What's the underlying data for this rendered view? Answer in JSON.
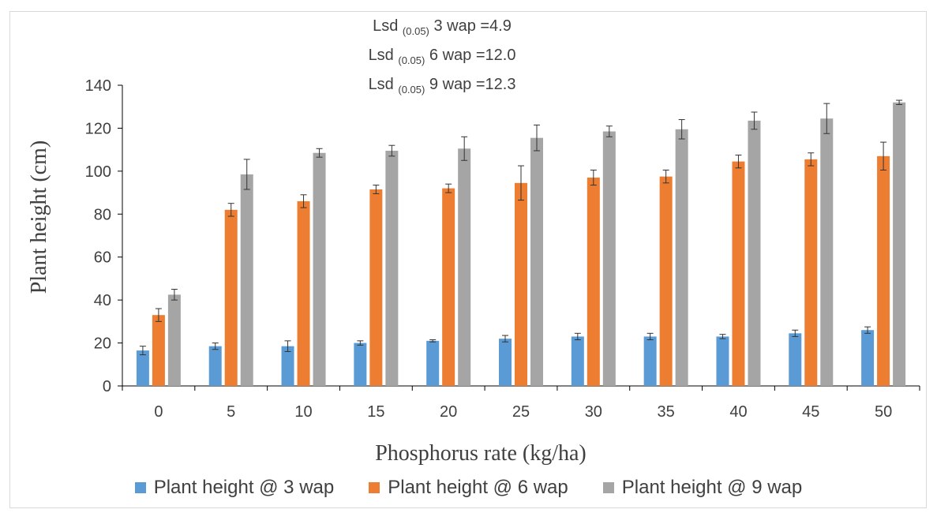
{
  "annotations": [
    {
      "prefix": "Lsd",
      "sub": "(0.05)",
      "suffix": "3 wap =4.9"
    },
    {
      "prefix": "Lsd",
      "sub": "(0.05)",
      "suffix": "6 wap =12.0"
    },
    {
      "prefix": "Lsd",
      "sub": "(0.05)",
      "suffix": "9 wap =12.3"
    }
  ],
  "chart_data": {
    "type": "bar",
    "title": "",
    "xlabel": "Phosphorus rate (kg/ha)",
    "ylabel": "Plant height (cm)",
    "ylim": [
      0,
      140
    ],
    "yticks": [
      0,
      20,
      40,
      60,
      80,
      100,
      120,
      140
    ],
    "grid": false,
    "legend_position": "bottom",
    "categories": [
      "0",
      "5",
      "10",
      "15",
      "20",
      "25",
      "30",
      "35",
      "40",
      "45",
      "50"
    ],
    "series": [
      {
        "name": "Plant height @ 3 wap",
        "color": "#5b9bd5",
        "values": [
          16.5,
          18.5,
          18.5,
          20,
          21,
          22,
          23,
          23,
          23,
          24.5,
          26
        ],
        "errors": [
          2,
          1.5,
          2.5,
          1,
          0.5,
          1.5,
          1.5,
          1.5,
          1,
          1.5,
          1.5
        ]
      },
      {
        "name": "Plant height @ 6 wap",
        "color": "#ed7d31",
        "values": [
          33,
          82,
          86,
          91.5,
          92,
          94.5,
          97,
          97.5,
          104.5,
          105.5,
          107
        ],
        "errors": [
          3,
          3,
          3,
          2,
          2,
          8,
          3.5,
          3,
          3,
          3,
          6.5
        ]
      },
      {
        "name": "Plant height @ 9 wap",
        "color": "#a5a5a5",
        "values": [
          42.5,
          98.5,
          108.5,
          109.5,
          110.5,
          115.5,
          118.5,
          119.5,
          123.5,
          124.5,
          132
        ],
        "errors": [
          2.5,
          7,
          2,
          2.5,
          5.5,
          6,
          2.5,
          4.5,
          4,
          7,
          1
        ]
      }
    ]
  }
}
